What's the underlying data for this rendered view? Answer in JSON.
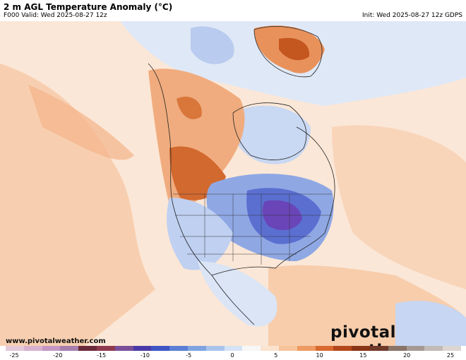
{
  "header": {
    "title": "2 m AGL Temperature Anomaly (°C)",
    "valid": "F000 Valid: Wed 2025-08-27 12z",
    "init": "Init: Wed 2025-08-27 12z GDPS"
  },
  "credit": "www.pivotalweather.com",
  "brand": "pivotal weather",
  "colorbar": {
    "ticks": [
      "-25",
      "-20",
      "-15",
      "-10",
      "-5",
      "0",
      "5",
      "10",
      "15",
      "20",
      "25"
    ],
    "colors": [
      "#e3c9d9",
      "#d8b1cf",
      "#c697c2",
      "#a77fae",
      "#6a2a3a",
      "#8e3a4e",
      "#7a4f9a",
      "#4a3aa8",
      "#3f55c4",
      "#5a7fd6",
      "#7fa3e0",
      "#a9c4ec",
      "#d4e3f5",
      "#f7f7f7",
      "#fbe3cf",
      "#f6c39b",
      "#ee9a62",
      "#d9692f",
      "#b4481b",
      "#8a3417",
      "#703a2a",
      "#8a7468",
      "#a59a93",
      "#c2bab5",
      "#dcd6d2"
    ]
  },
  "map": {
    "colors": {
      "ocean_warm": "#f8dcc6",
      "warm": "#f3b88f",
      "hot": "#e58a4f",
      "very_hot": "#c4561f",
      "cool": "#d7e4f6",
      "cold": "#9fb8e8",
      "very_cold": "#5b6fd1",
      "coldest": "#6a45b8"
    }
  }
}
